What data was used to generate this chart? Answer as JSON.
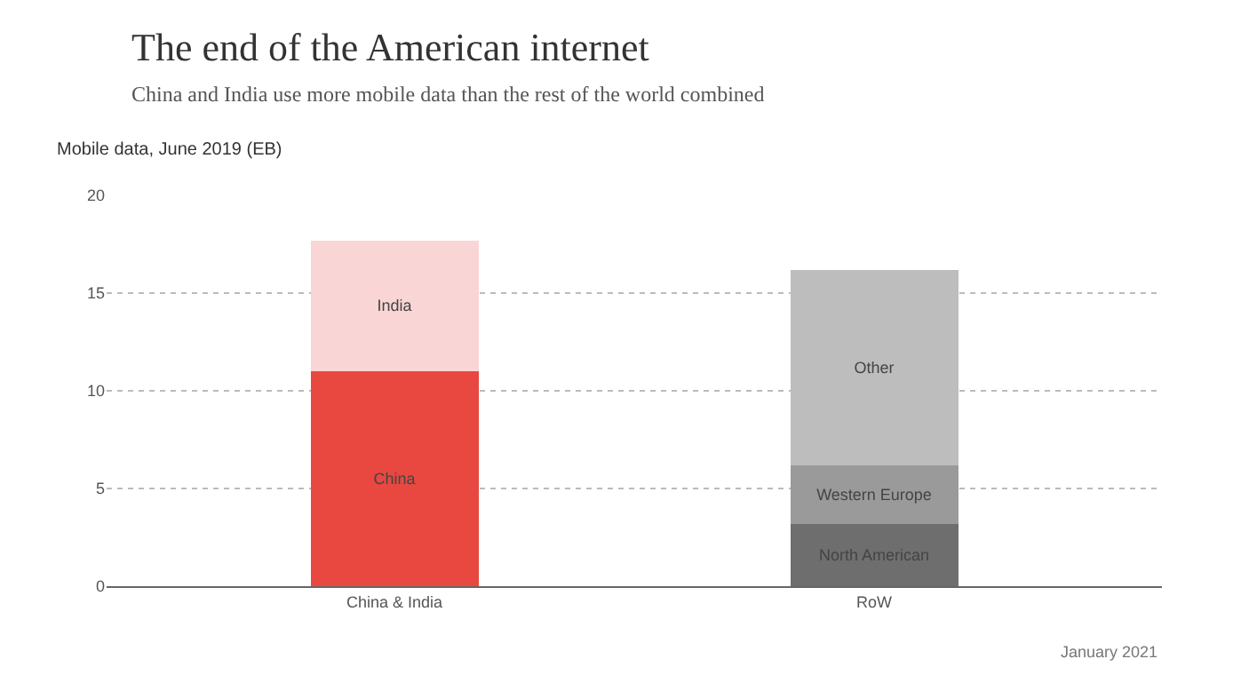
{
  "chart_data": {
    "type": "bar",
    "title": "The end of the American internet",
    "subtitle": "China and India use more mobile data than the rest of the world combined",
    "ylabel": "Mobile data, June 2019 (EB)",
    "categories": [
      "China & India",
      "RoW"
    ],
    "stacked": true,
    "legend": false,
    "grid": "y",
    "ylim": [
      0,
      20
    ],
    "yticks": [
      0,
      5,
      10,
      15,
      20
    ],
    "series": [
      {
        "name": "China",
        "color": "#e8483f",
        "values": [
          11,
          null
        ]
      },
      {
        "name": "India",
        "color": "#f9d5d5",
        "values": [
          6.7,
          null
        ]
      },
      {
        "name": "North American",
        "color": "#6e6e6e",
        "values": [
          null,
          3.2
        ]
      },
      {
        "name": "Western Europe",
        "color": "#9a9a9a",
        "values": [
          null,
          3.0
        ]
      },
      {
        "name": "Other",
        "color": "#bdbdbd",
        "values": [
          null,
          10
        ]
      }
    ],
    "annotations": [
      "January 2021"
    ]
  }
}
